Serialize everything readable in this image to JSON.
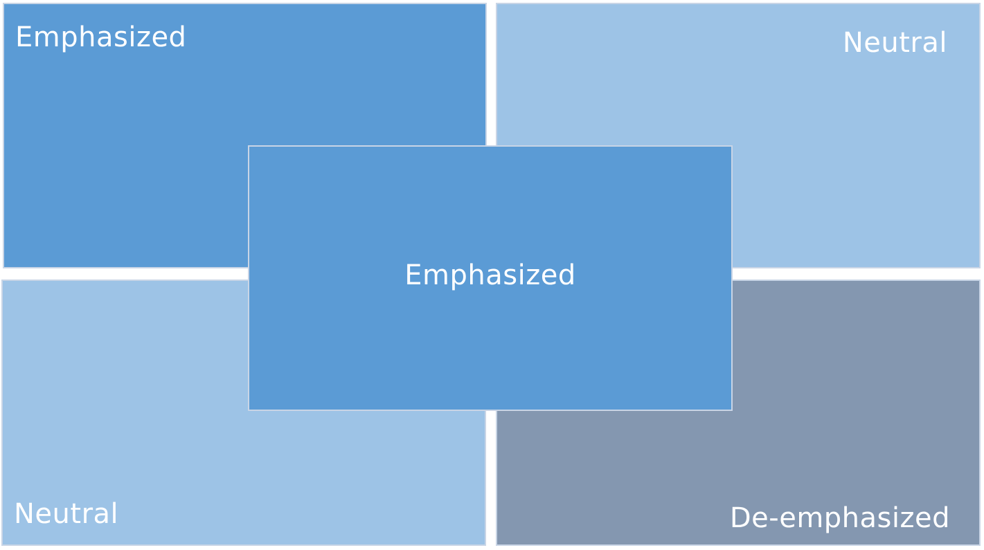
{
  "colors": {
    "emphasized": "#5b9bd5",
    "neutral": "#9dc3e6",
    "de_emphasized": "#8497b0",
    "text": "#ffffff"
  },
  "quadrants": {
    "top_left": {
      "label": "Emphasized",
      "style": "emphasized"
    },
    "top_right": {
      "label": "Neutral",
      "style": "neutral"
    },
    "bottom_left": {
      "label": "Neutral",
      "style": "neutral"
    },
    "bottom_right": {
      "label": "De-emphasized",
      "style": "de_emphasized"
    }
  },
  "center": {
    "label": "Emphasized",
    "style": "emphasized"
  }
}
